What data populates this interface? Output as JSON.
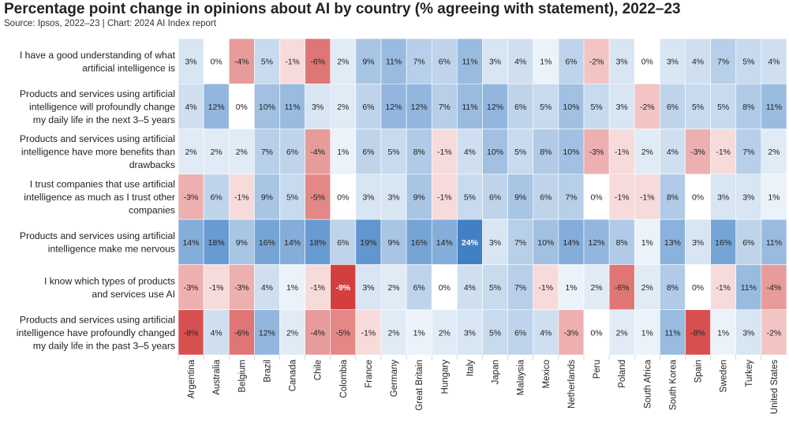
{
  "title": "Percentage point change in opinions about AI by country (% agreeing with statement), 2022–23",
  "source": "Source: Ipsos, 2022–23 | Chart: 2024 AI Index report",
  "colors": {
    "positive": "#3f7fc4",
    "negative": "#d33d3d",
    "neutral": "#ffffff",
    "highlight_text": "#ffffff"
  },
  "chart_data": {
    "type": "heatmap",
    "title": "Percentage point change in opinions about AI by country (% agreeing with statement), 2022–23",
    "columns": [
      "Argentina",
      "Australia",
      "Belgium",
      "Brazil",
      "Canada",
      "Chile",
      "Colombia",
      "France",
      "Germany",
      "Great Britain",
      "Hungary",
      "Italy",
      "Japan",
      "Malaysia",
      "Mexico",
      "Netherlands",
      "Peru",
      "Poland",
      "South Africa",
      "South Korea",
      "Spain",
      "Sweden",
      "Turkey",
      "United States"
    ],
    "rows": [
      {
        "lines": [
          "I have a good understanding of what",
          "artificial intelligence is"
        ],
        "values": [
          3,
          0,
          -4,
          5,
          -1,
          -6,
          2,
          9,
          11,
          7,
          6,
          11,
          3,
          4,
          1,
          6,
          -2,
          3,
          0,
          3,
          4,
          7,
          5,
          4
        ]
      },
      {
        "lines": [
          "Products and services using artificial",
          "intelligence will profoundly change",
          "my daily life in the next 3–5 years"
        ],
        "values": [
          4,
          12,
          0,
          10,
          11,
          3,
          2,
          6,
          12,
          12,
          7,
          11,
          12,
          6,
          5,
          10,
          5,
          3,
          -2,
          6,
          5,
          5,
          8,
          11
        ]
      },
      {
        "lines": [
          "Products and services using artificial",
          "intelligence have more benefits than",
          "drawbacks"
        ],
        "values": [
          2,
          2,
          2,
          7,
          6,
          -4,
          1,
          6,
          5,
          8,
          -1,
          4,
          10,
          5,
          8,
          10,
          -3,
          -1,
          2,
          4,
          -3,
          -1,
          7,
          2
        ]
      },
      {
        "lines": [
          "I trust companies that use artificial",
          "intelligence as much as I trust other",
          "companies"
        ],
        "values": [
          -3,
          6,
          -1,
          9,
          5,
          -5,
          0,
          3,
          3,
          9,
          -1,
          5,
          6,
          9,
          6,
          7,
          0,
          -1,
          -1,
          8,
          0,
          3,
          3,
          1
        ]
      },
      {
        "lines": [
          "Products and services using artificial",
          "intelligence make me nervous"
        ],
        "values": [
          14,
          18,
          9,
          16,
          14,
          18,
          6,
          19,
          9,
          16,
          14,
          24,
          3,
          7,
          10,
          14,
          12,
          8,
          1,
          13,
          3,
          16,
          6,
          11
        ]
      },
      {
        "lines": [
          "I know which types of products",
          "and services use AI"
        ],
        "values": [
          -3,
          -1,
          -3,
          4,
          1,
          -1,
          -9,
          3,
          2,
          6,
          0,
          4,
          5,
          7,
          -1,
          1,
          2,
          -6,
          2,
          8,
          0,
          -1,
          11,
          -4
        ]
      },
      {
        "lines": [
          "Products and services using artificial",
          "intelligence have profoundly changed",
          "my daily life in the past 3–5 years"
        ],
        "values": [
          -8,
          4,
          -6,
          12,
          2,
          -4,
          -5,
          -1,
          2,
          1,
          2,
          3,
          5,
          6,
          4,
          -3,
          0,
          2,
          1,
          11,
          -8,
          1,
          3,
          -2
        ]
      }
    ],
    "value_suffix": "%",
    "color_scale": {
      "min": -9,
      "max": 24
    }
  }
}
